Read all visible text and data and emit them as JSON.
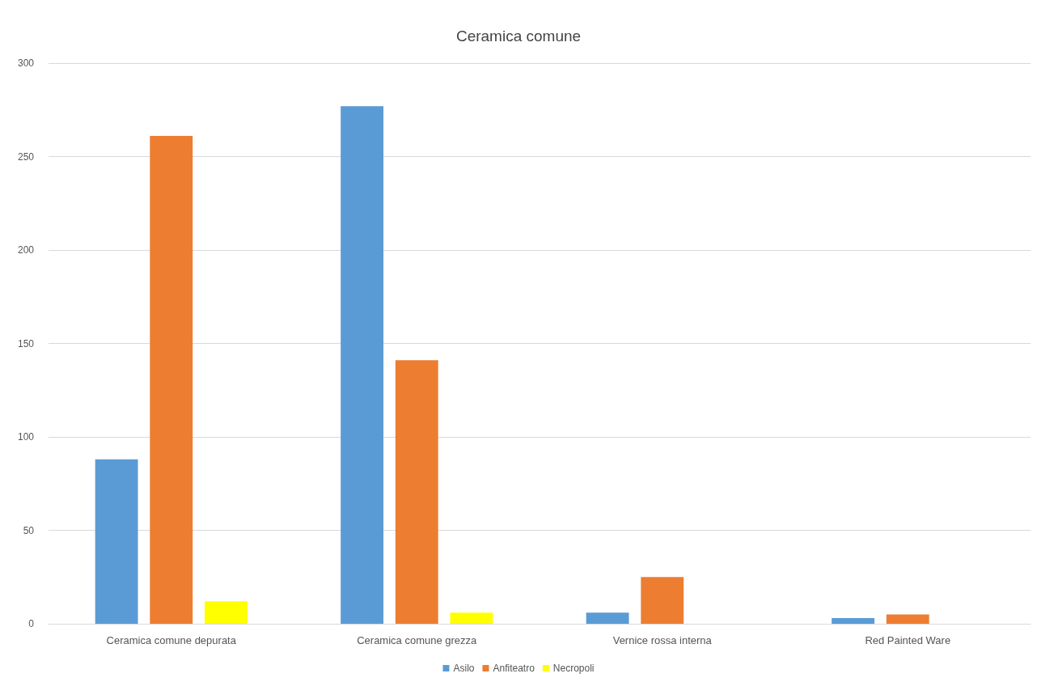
{
  "chart_data": {
    "type": "bar",
    "title": "Ceramica comune",
    "categories": [
      "Ceramica comune depurata",
      "Ceramica comune grezza",
      "Vernice rossa interna",
      "Red Painted Ware"
    ],
    "series": [
      {
        "name": "Asilo",
        "color": "#5b9bd5",
        "values": [
          88,
          277,
          6,
          3
        ]
      },
      {
        "name": "Anfiteatro",
        "color": "#ed7d31",
        "values": [
          261,
          141,
          25,
          5
        ]
      },
      {
        "name": "Necropoli",
        "color": "#ffff00",
        "values": [
          12,
          6,
          0,
          0
        ]
      }
    ],
    "ylim": [
      0,
      300
    ],
    "yticks": [
      0,
      50,
      100,
      150,
      200,
      250,
      300
    ],
    "grid": "y",
    "legend": "bottom"
  }
}
